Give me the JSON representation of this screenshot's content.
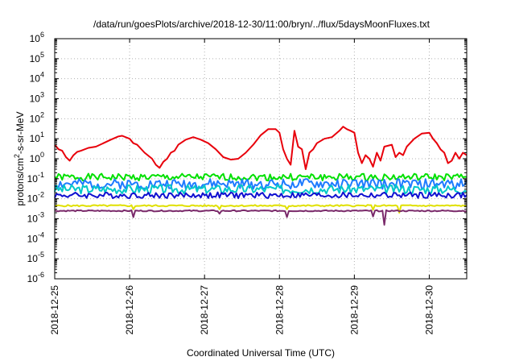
{
  "chart_data": {
    "type": "line",
    "title": "/data/run/goesPlots/archive/2018-12-30/11:00/bryn/../flux/5daysMoonFluxes.txt",
    "xlabel": "Coordinated Universal Time (UTC)",
    "ylabel": "protons/cm2-s-sr-MeV",
    "ylabel_parts": {
      "base": "protons/cm",
      "sup": "2",
      "rest": "-s-sr-MeV"
    },
    "yscale": "log",
    "ylim": [
      1e-06,
      1000000.0
    ],
    "xlim": [
      0,
      5.5
    ],
    "x_unit": "days since 2018-12-25 00:00 UTC",
    "x_ticks": [
      {
        "x": 0,
        "label": "2018-12-25"
      },
      {
        "x": 1,
        "label": "2018-12-26"
      },
      {
        "x": 2,
        "label": "2018-12-27"
      },
      {
        "x": 3,
        "label": "2018-12-28"
      },
      {
        "x": 4,
        "label": "2018-12-29"
      },
      {
        "x": 5,
        "label": "2018-12-30"
      }
    ],
    "y_ticks": [
      {
        "exp": -6,
        "label": "10",
        "sup": "-6"
      },
      {
        "exp": -5,
        "label": "10",
        "sup": "-5"
      },
      {
        "exp": -4,
        "label": "10",
        "sup": "-4"
      },
      {
        "exp": -3,
        "label": "10",
        "sup": "-3"
      },
      {
        "exp": -2,
        "label": "10",
        "sup": "-2"
      },
      {
        "exp": -1,
        "label": "10",
        "sup": "-1"
      },
      {
        "exp": 0,
        "label": "10",
        "sup": "0"
      },
      {
        "exp": 1,
        "label": "10",
        "sup": "1"
      },
      {
        "exp": 2,
        "label": "10",
        "sup": "2"
      },
      {
        "exp": 3,
        "label": "10",
        "sup": "3"
      },
      {
        "exp": 4,
        "label": "10",
        "sup": "4"
      },
      {
        "exp": 5,
        "label": "10",
        "sup": "5"
      },
      {
        "exp": 6,
        "label": "10",
        "sup": "6"
      }
    ],
    "grid": true,
    "legend": "none",
    "series": [
      {
        "color": "#e8000b",
        "points": [
          [
            0,
            5
          ],
          [
            0.05,
            3
          ],
          [
            0.1,
            2.5
          ],
          [
            0.15,
            1.2
          ],
          [
            0.2,
            0.8
          ],
          [
            0.25,
            1.5
          ],
          [
            0.3,
            2.2
          ],
          [
            0.35,
            2.5
          ],
          [
            0.45,
            3.5
          ],
          [
            0.55,
            4
          ],
          [
            0.65,
            6
          ],
          [
            0.75,
            9
          ],
          [
            0.85,
            13
          ],
          [
            0.9,
            14
          ],
          [
            1.0,
            10
          ],
          [
            1.05,
            6
          ],
          [
            1.1,
            5
          ],
          [
            1.2,
            2
          ],
          [
            1.3,
            1
          ],
          [
            1.35,
            0.5
          ],
          [
            1.4,
            0.35
          ],
          [
            1.45,
            0.7
          ],
          [
            1.5,
            1
          ],
          [
            1.55,
            2
          ],
          [
            1.6,
            2.5
          ],
          [
            1.65,
            5
          ],
          [
            1.75,
            9
          ],
          [
            1.85,
            12
          ],
          [
            1.95,
            9
          ],
          [
            2.05,
            6
          ],
          [
            2.15,
            3
          ],
          [
            2.25,
            1.2
          ],
          [
            2.35,
            0.9
          ],
          [
            2.45,
            1
          ],
          [
            2.55,
            2
          ],
          [
            2.65,
            5
          ],
          [
            2.75,
            15
          ],
          [
            2.85,
            30
          ],
          [
            2.95,
            30
          ],
          [
            3.0,
            20
          ],
          [
            3.05,
            3
          ],
          [
            3.1,
            1
          ],
          [
            3.15,
            0.5
          ],
          [
            3.2,
            25
          ],
          [
            3.25,
            4
          ],
          [
            3.3,
            3
          ],
          [
            3.35,
            0.3
          ],
          [
            3.4,
            2
          ],
          [
            3.45,
            3
          ],
          [
            3.5,
            6
          ],
          [
            3.6,
            10
          ],
          [
            3.7,
            12
          ],
          [
            3.8,
            25
          ],
          [
            3.85,
            40
          ],
          [
            3.9,
            30
          ],
          [
            3.95,
            25
          ],
          [
            4.0,
            20
          ],
          [
            4.05,
            2
          ],
          [
            4.1,
            0.6
          ],
          [
            4.15,
            1.5
          ],
          [
            4.2,
            1
          ],
          [
            4.25,
            0.4
          ],
          [
            4.3,
            2
          ],
          [
            4.35,
            0.8
          ],
          [
            4.4,
            4
          ],
          [
            4.5,
            5
          ],
          [
            4.55,
            1.2
          ],
          [
            4.6,
            2
          ],
          [
            4.65,
            1.5
          ],
          [
            4.7,
            4
          ],
          [
            4.8,
            10
          ],
          [
            4.9,
            18
          ],
          [
            5.0,
            20
          ],
          [
            5.05,
            10
          ],
          [
            5.1,
            6
          ],
          [
            5.15,
            3
          ],
          [
            5.2,
            2
          ],
          [
            5.25,
            0.6
          ],
          [
            5.3,
            0.8
          ],
          [
            5.35,
            2
          ],
          [
            5.4,
            1
          ],
          [
            5.45,
            2
          ],
          [
            5.5,
            1.5
          ]
        ]
      },
      {
        "color": "#00e000",
        "base": 0.12,
        "amp": 0.35,
        "seed": 1,
        "dips": []
      },
      {
        "color": "#1e7bff",
        "base": 0.055,
        "amp": 0.5,
        "seed": 2,
        "dips": []
      },
      {
        "color": "#00c8c8",
        "base": 0.03,
        "amp": 0.45,
        "seed": 3,
        "dips": []
      },
      {
        "color": "#1010d0",
        "base": 0.015,
        "amp": 0.3,
        "seed": 4,
        "dips": []
      },
      {
        "color": "#e0e000",
        "base": 0.0045,
        "amp": 0.08,
        "seed": 5,
        "dips": [
          [
            1.05,
            0.003
          ],
          [
            2.2,
            0.003
          ],
          [
            3.1,
            0.003
          ],
          [
            4.25,
            0.0028
          ],
          [
            4.6,
            0.002
          ]
        ]
      },
      {
        "color": "#7a2a6a",
        "base": 0.0025,
        "amp": 0.06,
        "seed": 6,
        "dips": [
          [
            1.05,
            0.0012
          ],
          [
            2.2,
            0.0018
          ],
          [
            3.1,
            0.0012
          ],
          [
            4.25,
            0.0013
          ],
          [
            4.4,
            0.0005
          ]
        ]
      }
    ]
  }
}
